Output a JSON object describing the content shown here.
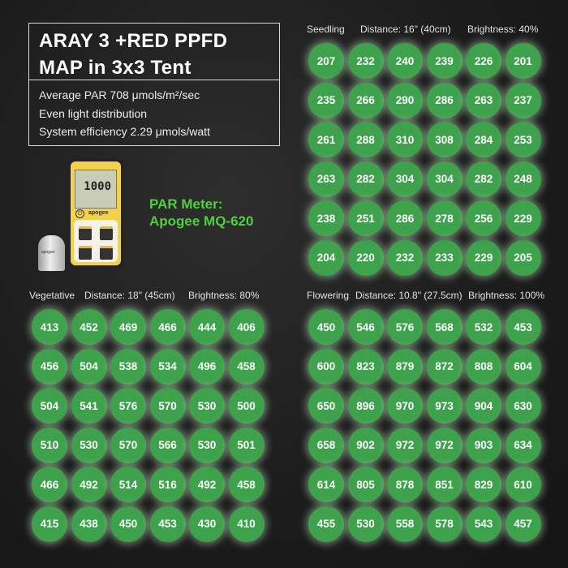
{
  "title": {
    "line1": "ARAY 3 +RED PPFD",
    "line2": "MAP in 3x3 Tent",
    "details": [
      "Average PAR 708 μmols/m²/sec",
      "Even light distribution",
      "System efficiency 2.29 μmols/watt"
    ]
  },
  "meter": {
    "label_line1": "PAR Meter:",
    "label_line2": "Apogee MQ-620",
    "label_color": "#4fd13c",
    "screen_value": "1000",
    "brand": "apogee"
  },
  "colors": {
    "circle": "#3ea14c",
    "background": "#1d1d1d"
  },
  "maps": [
    {
      "stage": "Seedling",
      "distance": "Distance: 16\" (40cm)",
      "brightness": "Brightness: 40%",
      "values": [
        [
          207,
          232,
          240,
          239,
          226,
          201
        ],
        [
          235,
          266,
          290,
          286,
          263,
          237
        ],
        [
          261,
          288,
          310,
          308,
          284,
          253
        ],
        [
          263,
          282,
          304,
          304,
          282,
          248
        ],
        [
          238,
          251,
          286,
          278,
          256,
          229
        ],
        [
          204,
          220,
          232,
          233,
          229,
          205
        ]
      ]
    },
    {
      "stage": "Vegetative",
      "distance": "Distance: 18\" (45cm)",
      "brightness": "Brightness: 80%",
      "values": [
        [
          413,
          452,
          469,
          466,
          444,
          406
        ],
        [
          456,
          504,
          538,
          534,
          496,
          458
        ],
        [
          504,
          541,
          576,
          570,
          530,
          500
        ],
        [
          510,
          530,
          570,
          566,
          530,
          501
        ],
        [
          466,
          492,
          514,
          516,
          492,
          458
        ],
        [
          415,
          438,
          450,
          453,
          430,
          410
        ]
      ]
    },
    {
      "stage": "Flowering",
      "distance": "Distance: 10.8\" (27.5cm)",
      "brightness": "Brightness: 100%",
      "values": [
        [
          450,
          546,
          576,
          568,
          532,
          453
        ],
        [
          600,
          823,
          879,
          872,
          808,
          604
        ],
        [
          650,
          896,
          970,
          973,
          904,
          630
        ],
        [
          658,
          902,
          972,
          972,
          903,
          634
        ],
        [
          614,
          805,
          878,
          851,
          829,
          610
        ],
        [
          455,
          530,
          558,
          578,
          543,
          457
        ]
      ]
    }
  ]
}
